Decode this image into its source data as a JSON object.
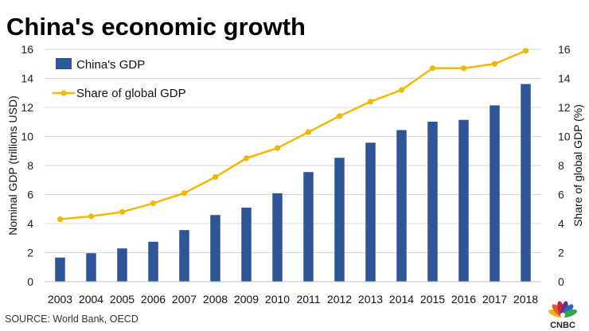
{
  "title": "China's economic growth",
  "source": "SOURCE: World Bank, OECD",
  "logo_text": "CNBC",
  "colors": {
    "bar": "#2e5596",
    "line": "#f2b705",
    "grid": "#d9d9d9"
  },
  "chart_data": {
    "type": "bar",
    "categories": [
      "2003",
      "2004",
      "2005",
      "2006",
      "2007",
      "2008",
      "2009",
      "2010",
      "2011",
      "2012",
      "2013",
      "2014",
      "2015",
      "2016",
      "2017",
      "2018"
    ],
    "series": [
      {
        "name": "China's GDP",
        "type": "bar",
        "axis": "left",
        "values": [
          1.66,
          1.96,
          2.29,
          2.75,
          3.55,
          4.59,
          5.1,
          6.09,
          7.55,
          8.53,
          9.57,
          10.44,
          11.02,
          11.14,
          12.14,
          13.61
        ]
      },
      {
        "name": "Share of global GDP",
        "type": "line",
        "axis": "right",
        "values": [
          4.3,
          4.5,
          4.8,
          5.4,
          6.1,
          7.2,
          8.5,
          9.2,
          10.3,
          11.4,
          12.4,
          13.2,
          14.7,
          14.7,
          15.0,
          15.9
        ]
      }
    ],
    "ylabel": "Nominal GDP (trillions USD)",
    "y2label": "Share of global GDP (%)",
    "ylim": [
      0,
      16
    ],
    "y2lim": [
      0,
      16
    ],
    "yticks": [
      0,
      2,
      4,
      6,
      8,
      10,
      12,
      14,
      16
    ],
    "y2ticks": [
      0,
      2,
      4,
      6,
      8,
      10,
      12,
      14,
      16
    ],
    "grid": true,
    "legend": "top-left"
  }
}
